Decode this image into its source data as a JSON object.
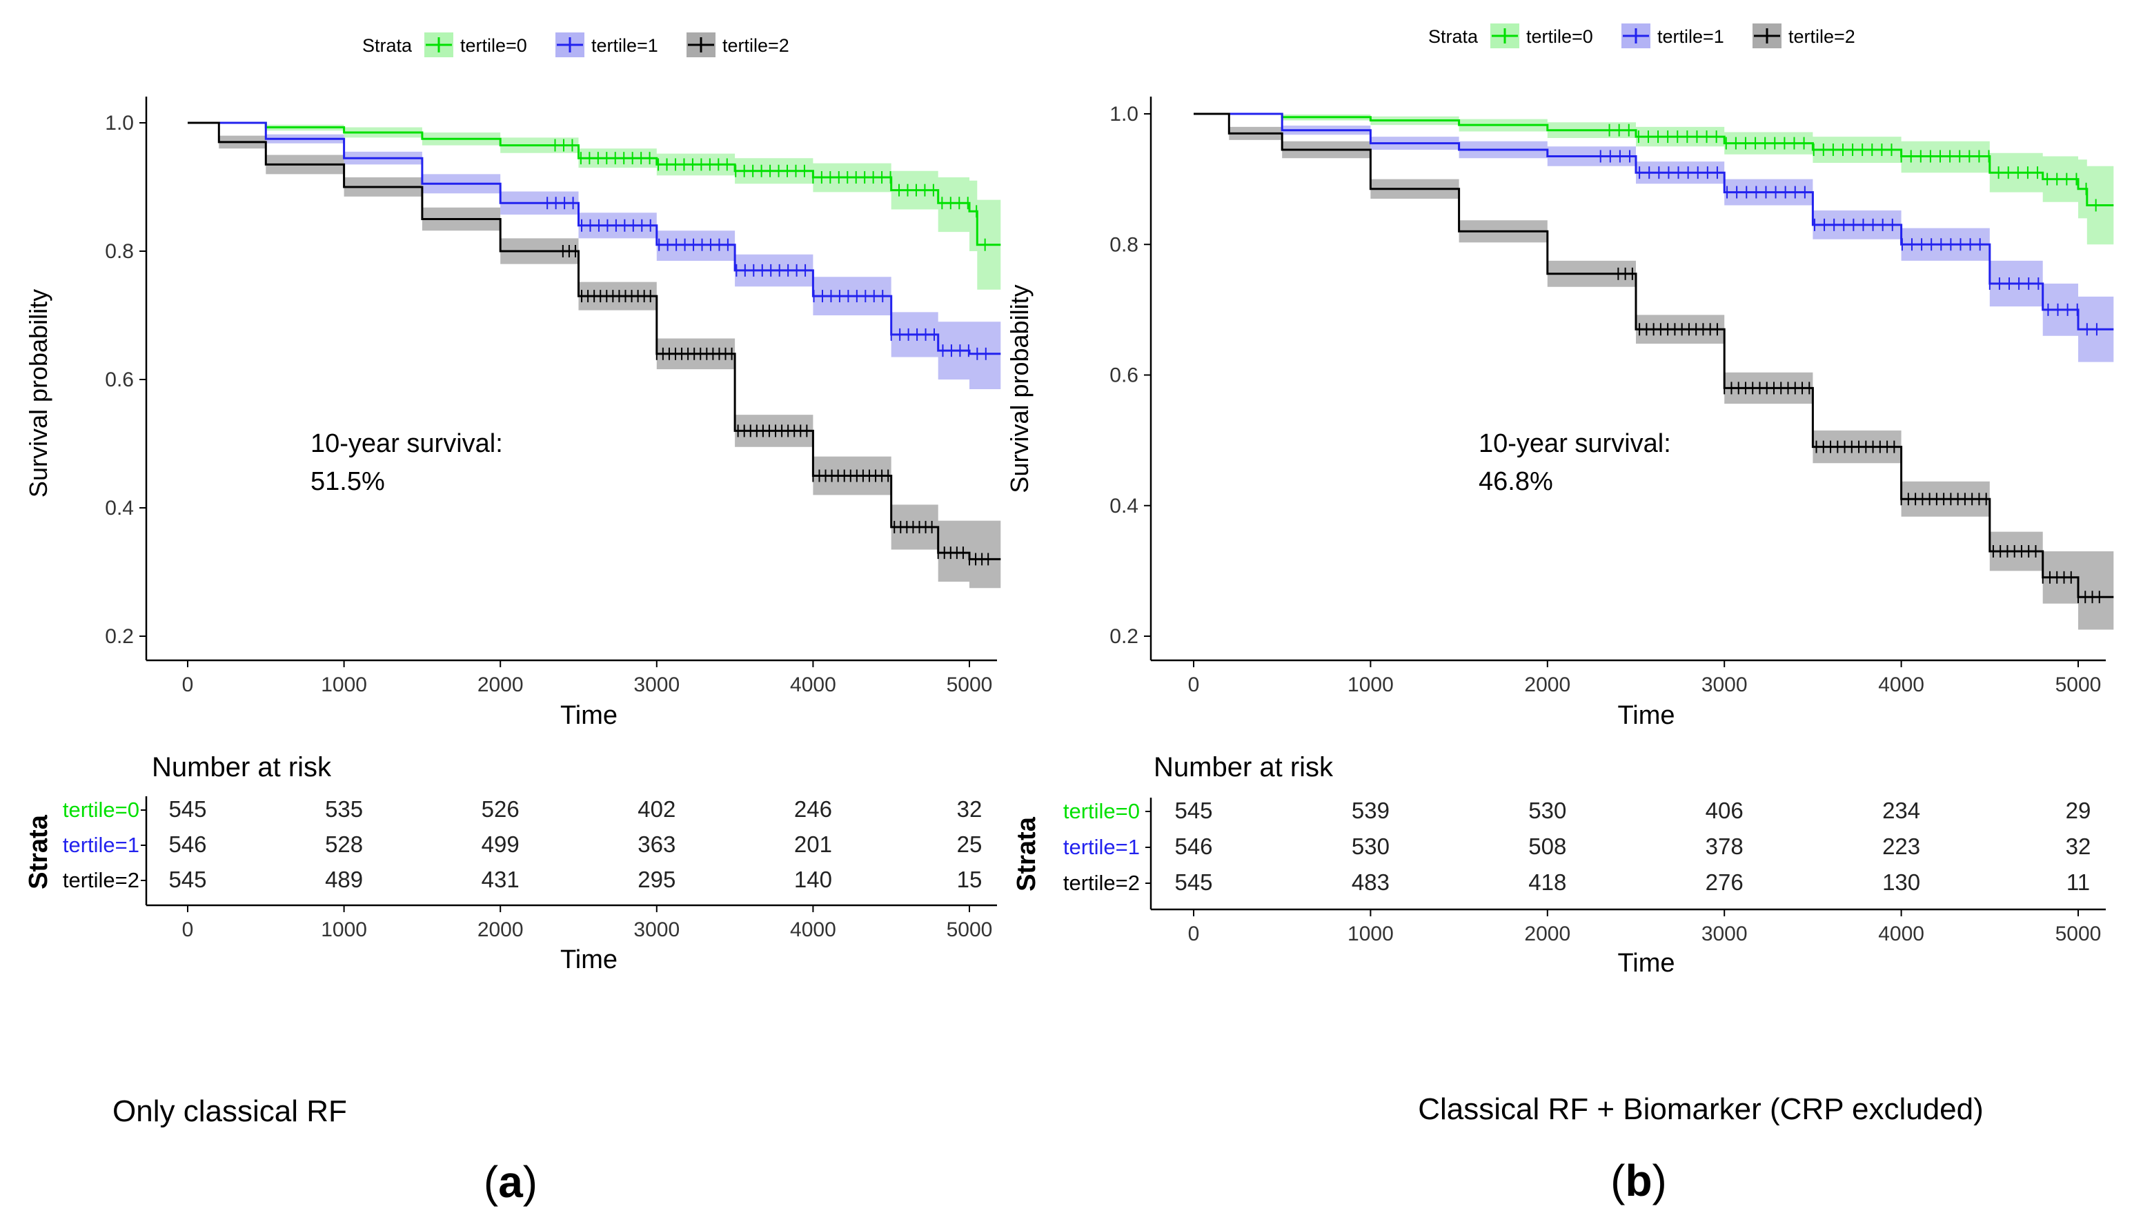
{
  "chart_data": [
    {
      "type": "line",
      "subtype": "kaplan-meier",
      "legend_title": "Strata",
      "legend_position": "top",
      "xlabel": "Time",
      "ylabel": "Survival probability",
      "xlim": [
        0,
        5200
      ],
      "ylim": [
        0.2,
        1.0
      ],
      "xticks": [
        "0",
        "1000",
        "2000",
        "3000",
        "4000",
        "5000"
      ],
      "yticks": [
        "0.2",
        "0.4",
        "0.6",
        "0.8",
        "1.0"
      ],
      "grid": false,
      "annotation": {
        "line1": "10-year survival:",
        "line2": "51.5%"
      },
      "series": [
        {
          "name": "tertile=0",
          "color": "#00e000",
          "band_color": "#b3f5b3",
          "x": [
            0,
            500,
            1000,
            1500,
            2000,
            2500,
            3000,
            3500,
            4000,
            4500,
            4800,
            5000,
            5050,
            5200
          ],
          "values": [
            1.0,
            0.993,
            0.985,
            0.975,
            0.965,
            0.945,
            0.935,
            0.925,
            0.915,
            0.895,
            0.875,
            0.862,
            0.81,
            0.81
          ],
          "lower": [
            1.0,
            0.988,
            0.977,
            0.965,
            0.953,
            0.93,
            0.918,
            0.905,
            0.892,
            0.865,
            0.83,
            0.8,
            0.74,
            0.74
          ],
          "upper": [
            1.0,
            0.997,
            0.993,
            0.985,
            0.977,
            0.96,
            0.952,
            0.945,
            0.937,
            0.925,
            0.915,
            0.91,
            0.88,
            0.88
          ]
        },
        {
          "name": "tertile=1",
          "color": "#2222ee",
          "band_color": "#b3b3f5",
          "x": [
            0,
            500,
            1000,
            1500,
            2000,
            2500,
            3000,
            3500,
            4000,
            4500,
            4800,
            5000,
            5200
          ],
          "values": [
            1.0,
            0.975,
            0.945,
            0.905,
            0.875,
            0.84,
            0.81,
            0.77,
            0.73,
            0.67,
            0.645,
            0.64,
            0.64
          ],
          "lower": [
            1.0,
            0.968,
            0.935,
            0.89,
            0.857,
            0.82,
            0.785,
            0.745,
            0.7,
            0.635,
            0.6,
            0.585,
            0.585
          ],
          "upper": [
            1.0,
            0.982,
            0.955,
            0.92,
            0.893,
            0.86,
            0.832,
            0.795,
            0.76,
            0.705,
            0.69,
            0.69,
            0.69
          ]
        },
        {
          "name": "tertile=2",
          "color": "#000000",
          "band_color": "#aaaaaa",
          "x": [
            0,
            200,
            500,
            1000,
            1500,
            2000,
            2500,
            3000,
            3500,
            4000,
            4500,
            4800,
            5000,
            5200
          ],
          "values": [
            1.0,
            0.97,
            0.935,
            0.9,
            0.85,
            0.8,
            0.73,
            0.64,
            0.52,
            0.45,
            0.37,
            0.33,
            0.32,
            0.32
          ],
          "lower": [
            1.0,
            0.96,
            0.92,
            0.885,
            0.832,
            0.78,
            0.708,
            0.616,
            0.495,
            0.42,
            0.335,
            0.285,
            0.275,
            0.275
          ],
          "upper": [
            1.0,
            0.98,
            0.95,
            0.915,
            0.868,
            0.82,
            0.752,
            0.664,
            0.545,
            0.48,
            0.405,
            0.38,
            0.38,
            0.38
          ]
        }
      ],
      "risk_table": {
        "title": "Number at risk",
        "ylabel": "Strata",
        "xlabel": "Time",
        "times": [
          0,
          1000,
          2000,
          3000,
          4000,
          5000
        ],
        "rows": [
          {
            "label": "tertile=0",
            "color": "#00e000",
            "values": [
              "545",
              "535",
              "526",
              "402",
              "246",
              "32"
            ]
          },
          {
            "label": "tertile=1",
            "color": "#2222ee",
            "values": [
              "546",
              "528",
              "499",
              "363",
              "201",
              "25"
            ]
          },
          {
            "label": "tertile=2",
            "color": "#000000",
            "values": [
              "545",
              "489",
              "431",
              "295",
              "140",
              "15"
            ]
          }
        ]
      },
      "caption": "Only classical RF",
      "panel_label": "(a)"
    },
    {
      "type": "line",
      "subtype": "kaplan-meier",
      "legend_title": "Strata",
      "legend_position": "top",
      "xlabel": "Time",
      "ylabel": "Survival probability",
      "xlim": [
        0,
        5200
      ],
      "ylim": [
        0.2,
        1.0
      ],
      "xticks": [
        "0",
        "1000",
        "2000",
        "3000",
        "4000",
        "5000"
      ],
      "yticks": [
        "0.2",
        "0.4",
        "0.6",
        "0.8",
        "1.0"
      ],
      "grid": false,
      "annotation": {
        "line1": "10-year survival:",
        "line2": "46.8%"
      },
      "series": [
        {
          "name": "tertile=0",
          "color": "#00e000",
          "band_color": "#b3f5b3",
          "x": [
            0,
            500,
            1000,
            1500,
            2000,
            2500,
            3000,
            3500,
            4000,
            4500,
            4800,
            5000,
            5050,
            5200
          ],
          "values": [
            1.0,
            0.995,
            0.99,
            0.983,
            0.975,
            0.965,
            0.955,
            0.945,
            0.935,
            0.91,
            0.9,
            0.885,
            0.86,
            0.86
          ],
          "lower": [
            1.0,
            0.99,
            0.983,
            0.973,
            0.963,
            0.95,
            0.938,
            0.925,
            0.91,
            0.88,
            0.865,
            0.84,
            0.8,
            0.8
          ],
          "upper": [
            1.0,
            0.999,
            0.996,
            0.992,
            0.987,
            0.98,
            0.972,
            0.965,
            0.958,
            0.94,
            0.935,
            0.93,
            0.92,
            0.92
          ]
        },
        {
          "name": "tertile=1",
          "color": "#2222ee",
          "band_color": "#b3b3f5",
          "x": [
            0,
            500,
            1000,
            1500,
            2000,
            2500,
            3000,
            3500,
            4000,
            4500,
            4800,
            5000,
            5200
          ],
          "values": [
            1.0,
            0.975,
            0.955,
            0.945,
            0.935,
            0.91,
            0.88,
            0.83,
            0.8,
            0.74,
            0.7,
            0.67,
            0.67
          ],
          "lower": [
            1.0,
            0.968,
            0.945,
            0.932,
            0.92,
            0.893,
            0.86,
            0.808,
            0.775,
            0.705,
            0.66,
            0.62,
            0.62
          ],
          "upper": [
            1.0,
            0.982,
            0.965,
            0.958,
            0.95,
            0.927,
            0.9,
            0.852,
            0.825,
            0.775,
            0.74,
            0.72,
            0.72
          ]
        },
        {
          "name": "tertile=2",
          "color": "#000000",
          "band_color": "#aaaaaa",
          "x": [
            0,
            200,
            500,
            1000,
            1500,
            2000,
            2500,
            3000,
            3500,
            4000,
            4500,
            4800,
            5000,
            5200
          ],
          "values": [
            1.0,
            0.97,
            0.945,
            0.885,
            0.82,
            0.755,
            0.67,
            0.58,
            0.49,
            0.41,
            0.33,
            0.29,
            0.26,
            0.26
          ],
          "lower": [
            1.0,
            0.96,
            0.932,
            0.87,
            0.803,
            0.735,
            0.648,
            0.556,
            0.465,
            0.383,
            0.3,
            0.25,
            0.21,
            0.21
          ],
          "upper": [
            1.0,
            0.98,
            0.958,
            0.9,
            0.837,
            0.775,
            0.692,
            0.604,
            0.515,
            0.437,
            0.36,
            0.33,
            0.33,
            0.33
          ]
        }
      ],
      "risk_table": {
        "title": "Number at risk",
        "ylabel": "Strata",
        "xlabel": "Time",
        "times": [
          0,
          1000,
          2000,
          3000,
          4000,
          5000
        ],
        "rows": [
          {
            "label": "tertile=0",
            "color": "#00e000",
            "values": [
              "545",
              "539",
              "530",
              "406",
              "234",
              "29"
            ]
          },
          {
            "label": "tertile=1",
            "color": "#2222ee",
            "values": [
              "546",
              "530",
              "508",
              "378",
              "223",
              "32"
            ]
          },
          {
            "label": "tertile=2",
            "color": "#000000",
            "values": [
              "545",
              "483",
              "418",
              "276",
              "130",
              "11"
            ]
          }
        ]
      },
      "caption": "Classical RF + Biomarker (CRP excluded)",
      "panel_label": "(b)"
    }
  ]
}
